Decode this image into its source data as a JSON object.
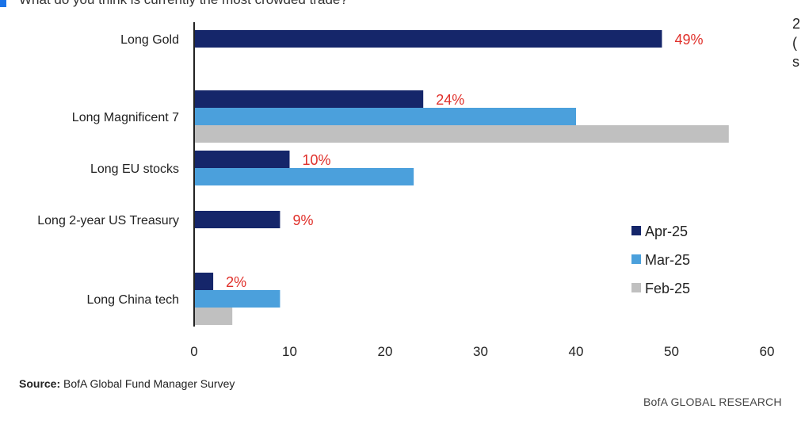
{
  "question": "What do you think is currently the most crowded trade?",
  "side_note": "2\n(\ns",
  "source_label": "Source:",
  "source_text": "BofA Global Fund Manager Survey",
  "footer": "BofA GLOBAL RESEARCH",
  "colors": {
    "apr": "#15266a",
    "mar": "#4ba0dc",
    "feb": "#c0c0c0",
    "label": "#e0302a",
    "axis": "#222222",
    "accent": "#1a73e8"
  },
  "chart_data": {
    "type": "bar",
    "orientation": "horizontal",
    "title": "What do you think is currently the most crowded trade?",
    "categories": [
      "Long Gold",
      "Long Magnificent 7",
      "Long EU stocks",
      "Long 2-year US Treasury",
      "Long China tech"
    ],
    "series": [
      {
        "name": "Apr-25",
        "values": [
          49,
          24,
          10,
          9,
          2
        ],
        "data_labels": [
          "49%",
          "24%",
          "10%",
          "9%",
          "2%"
        ]
      },
      {
        "name": "Mar-25",
        "values": [
          null,
          40,
          23,
          null,
          9
        ]
      },
      {
        "name": "Feb-25",
        "values": [
          null,
          56,
          null,
          null,
          4
        ]
      }
    ],
    "xlim": [
      0,
      60
    ],
    "xticks": [
      "0",
      "10",
      "20",
      "30",
      "40",
      "50",
      "60"
    ],
    "legend_position": "right",
    "grid": false
  }
}
